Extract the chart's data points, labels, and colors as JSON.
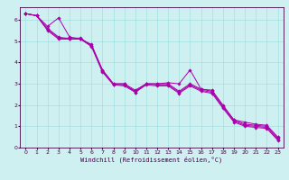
{
  "background_color": "#cff0f0",
  "line_color": "#aa00aa",
  "grid_color": "#99dddd",
  "xlabel": "Windchill (Refroidissement éolien,°C)",
  "xlim": [
    -0.5,
    23.5
  ],
  "ylim": [
    0,
    6.6
  ],
  "xticks": [
    0,
    1,
    2,
    3,
    4,
    5,
    6,
    7,
    8,
    9,
    10,
    11,
    12,
    13,
    14,
    15,
    16,
    17,
    18,
    19,
    20,
    21,
    22,
    23
  ],
  "yticks": [
    0,
    1,
    2,
    3,
    4,
    5,
    6
  ],
  "series": [
    [
      6.3,
      6.2,
      5.7,
      6.1,
      5.2,
      5.1,
      4.85,
      3.65,
      3.0,
      3.0,
      2.6,
      3.0,
      3.0,
      3.05,
      3.0,
      3.65,
      2.75,
      2.7,
      2.0,
      1.3,
      1.2,
      1.1,
      1.05,
      0.5
    ],
    [
      6.3,
      6.2,
      5.6,
      5.2,
      5.1,
      5.1,
      4.8,
      3.65,
      3.0,
      3.0,
      2.7,
      3.0,
      3.0,
      3.0,
      2.65,
      3.0,
      2.75,
      2.65,
      1.95,
      1.3,
      1.1,
      1.05,
      1.0,
      0.45
    ],
    [
      6.3,
      6.2,
      5.55,
      5.15,
      5.15,
      5.15,
      4.8,
      3.6,
      2.98,
      2.95,
      2.65,
      3.0,
      2.95,
      2.95,
      2.6,
      2.95,
      2.7,
      2.6,
      1.9,
      1.25,
      1.05,
      1.0,
      0.95,
      0.4
    ],
    [
      6.3,
      6.2,
      5.5,
      5.1,
      5.1,
      5.1,
      4.75,
      3.55,
      2.95,
      2.9,
      2.6,
      2.95,
      2.9,
      2.9,
      2.55,
      2.9,
      2.65,
      2.55,
      1.85,
      1.2,
      1.0,
      0.95,
      0.9,
      0.35
    ]
  ],
  "xlabel_fontsize": 5.0,
  "tick_fontsize": 4.5,
  "linewidth": 0.7,
  "markersize": 1.8,
  "spine_color": "#440044",
  "tick_color": "#440044"
}
